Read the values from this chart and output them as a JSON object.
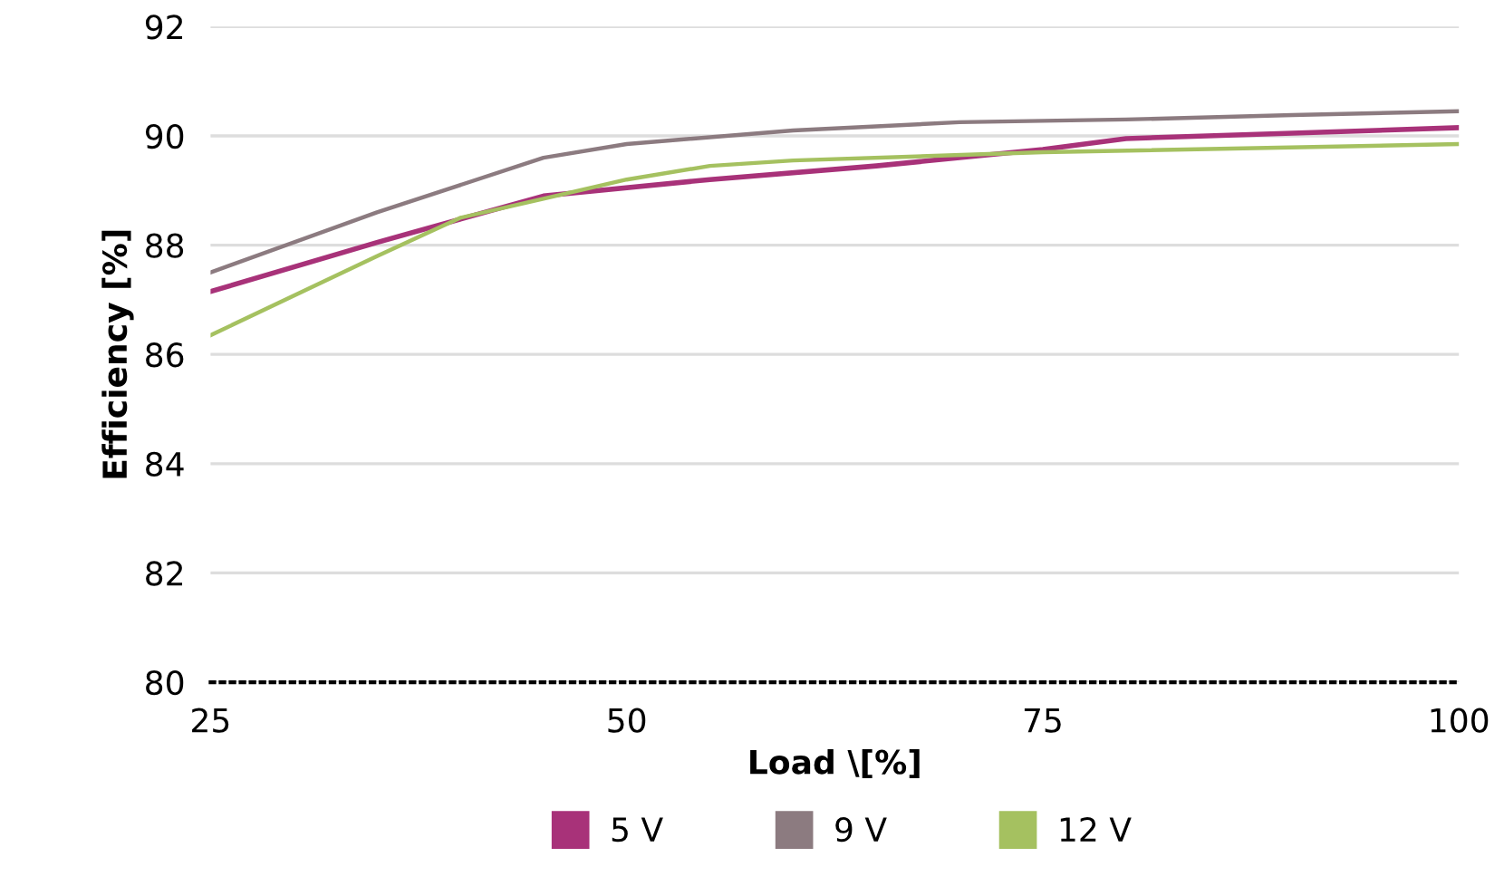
{
  "chart_data": {
    "type": "line",
    "xlabel": "Load \\[%]",
    "ylabel": "Efficiency [%]",
    "xlim": [
      25,
      100
    ],
    "xticks": [
      25,
      50,
      75,
      100
    ],
    "ylim": [
      80,
      92
    ],
    "yticks": [
      80,
      82,
      84,
      86,
      88,
      90,
      92
    ],
    "grid": "y",
    "legend": "bottom",
    "marker": "none",
    "line_style": "solid",
    "series": [
      {
        "name": "5 V",
        "color": "#a83279",
        "x": [
          25,
          35,
          45,
          55,
          65,
          75,
          80,
          90,
          100
        ],
        "values": [
          87.15,
          88.05,
          88.9,
          89.2,
          89.45,
          89.75,
          89.95,
          90.05,
          90.15
        ]
      },
      {
        "name": "9 V",
        "color": "#8c7b80",
        "x": [
          25,
          35,
          45,
          50,
          60,
          70,
          80,
          90,
          100
        ],
        "values": [
          87.5,
          88.6,
          89.6,
          89.85,
          90.1,
          90.25,
          90.3,
          90.38,
          90.45
        ]
      },
      {
        "name": "12 V",
        "color": "#a5c160",
        "x": [
          25,
          35,
          40,
          45,
          50,
          55,
          60,
          75,
          100
        ],
        "values": [
          86.35,
          87.8,
          88.5,
          88.85,
          89.2,
          89.45,
          89.55,
          89.7,
          89.85
        ]
      }
    ]
  }
}
